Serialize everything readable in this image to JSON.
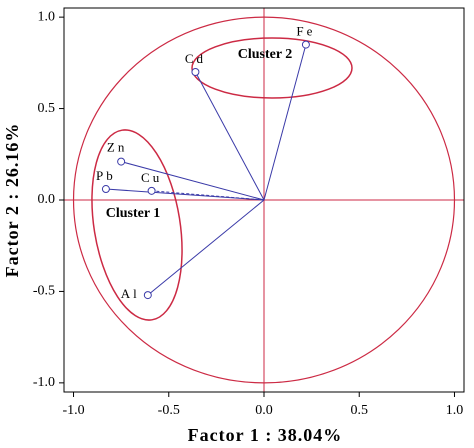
{
  "chart_data": {
    "type": "scatter",
    "xlabel": "Factor 1 : 38.04%",
    "ylabel": "Factor 2 : 26.16%",
    "labels": [
      "Fe",
      "Cd",
      "Zn",
      "Pb",
      "Cu",
      "Al"
    ],
    "x": [
      0.22,
      -0.36,
      -0.75,
      -0.83,
      -0.59,
      -0.61
    ],
    "values": [
      0.85,
      0.7,
      0.21,
      0.06,
      0.05,
      -0.52
    ],
    "color": "#3a3aa8",
    "circle_color": "#cc2a44",
    "xlim": [
      -1.05,
      1.05
    ],
    "ylim": [
      -1.05,
      1.05
    ],
    "xticks": [
      {
        "value": -1,
        "label": "-1.0"
      },
      {
        "value": -0.5,
        "label": "-0.5"
      },
      {
        "value": 0,
        "label": "0.0"
      },
      {
        "value": 0.5,
        "label": "0.5"
      },
      {
        "value": 1,
        "label": "1.0"
      }
    ],
    "yticks": [
      {
        "value": -1,
        "label": "-1.0"
      },
      {
        "value": -0.5,
        "label": "-0.5"
      },
      {
        "value": 0,
        "label": "0.0"
      },
      {
        "value": 0.5,
        "label": "0.5"
      },
      {
        "value": 1,
        "label": "1.0"
      }
    ],
    "annotations": [
      "Cluster 1",
      "Cluster 2"
    ]
  }
}
